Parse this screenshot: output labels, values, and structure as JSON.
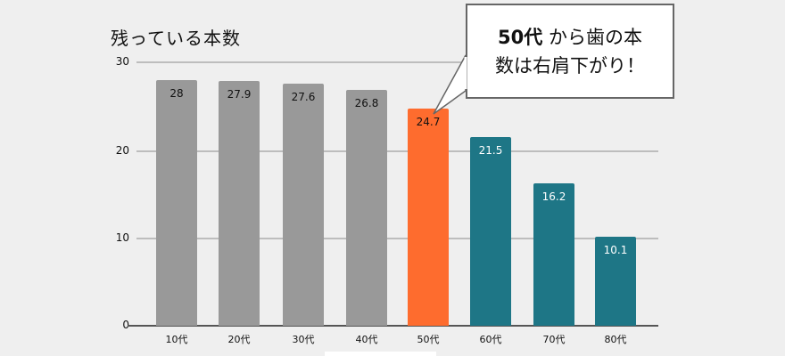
{
  "chart_data": {
    "type": "bar",
    "title": "残っている本数",
    "categories": [
      "10代",
      "20代",
      "30代",
      "40代",
      "50代",
      "60代",
      "70代",
      "80代"
    ],
    "values": [
      28,
      27.9,
      27.6,
      26.8,
      24.7,
      21.5,
      16.2,
      10.1
    ],
    "bar_colors": [
      "#999999",
      "#999999",
      "#999999",
      "#999999",
      "#fe6c2e",
      "#1e7686",
      "#1e7686",
      "#1e7686"
    ],
    "label_colors": [
      "#111111",
      "#111111",
      "#111111",
      "#111111",
      "#111111",
      "#ffffff",
      "#ffffff",
      "#ffffff"
    ],
    "xlabel": "",
    "ylabel": "",
    "ylim": [
      0,
      30
    ],
    "yticks": [
      "30",
      "20",
      "10",
      "0"
    ],
    "grid": true,
    "annotation": {
      "bold_part": "50代",
      "line1_rest": "から歯の本",
      "line2": "数は右肩下がり！",
      "points_to": "50代"
    }
  }
}
